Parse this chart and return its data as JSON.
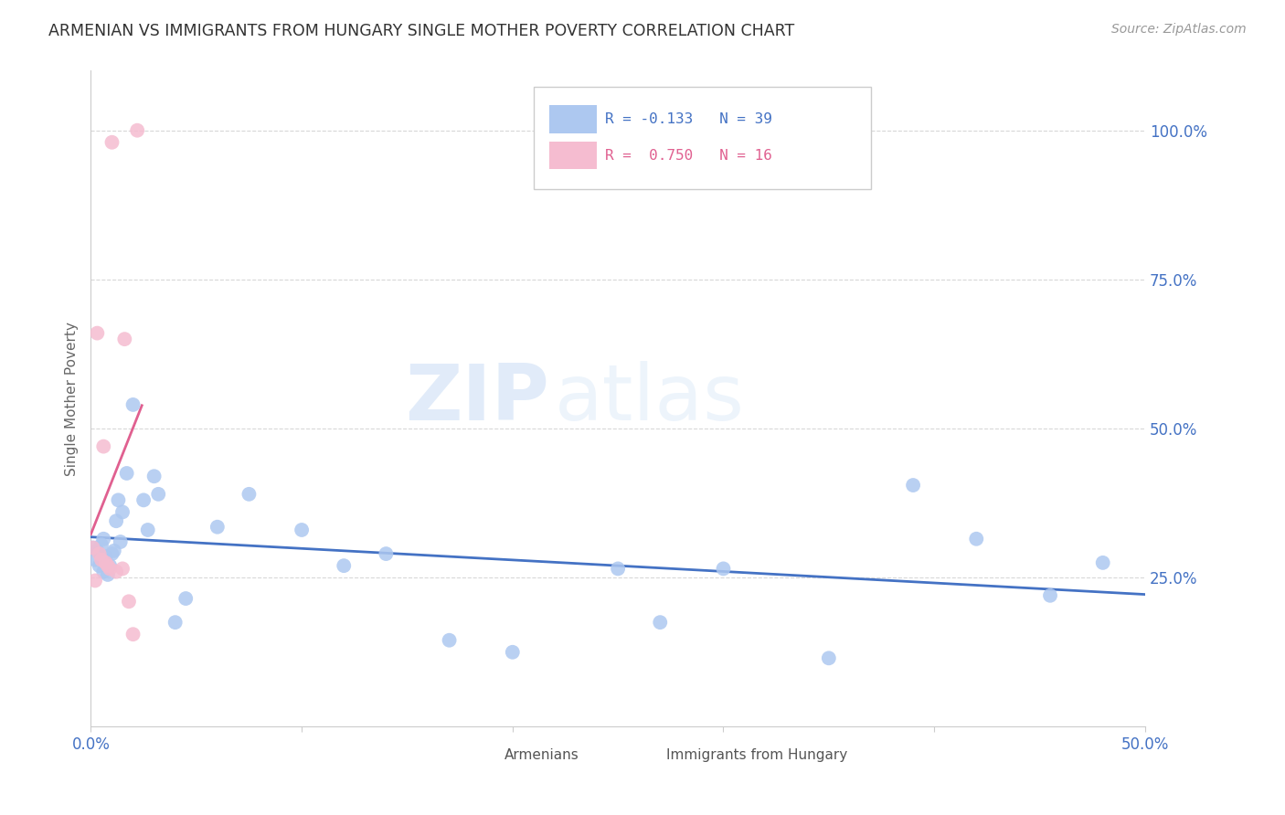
{
  "title": "ARMENIAN VS IMMIGRANTS FROM HUNGARY SINGLE MOTHER POVERTY CORRELATION CHART",
  "source": "Source: ZipAtlas.com",
  "ylabel": "Single Mother Poverty",
  "legend_label1": "Armenians",
  "legend_label2": "Immigrants from Hungary",
  "armenian_color": "#adc8f0",
  "hungary_color": "#f5bcd0",
  "armenian_line_color": "#4472c4",
  "hungary_line_color": "#e06090",
  "watermark_zip": "ZIP",
  "watermark_atlas": "atlas",
  "xlim": [
    0.0,
    0.5
  ],
  "ylim": [
    0.0,
    1.1
  ],
  "yticks": [
    0.0,
    0.25,
    0.5,
    0.75,
    1.0
  ],
  "yticklabels_right": [
    "25.0%",
    "50.0%",
    "75.0%",
    "100.0%"
  ],
  "xtick_positions": [
    0.0,
    0.1,
    0.2,
    0.3,
    0.4,
    0.5
  ],
  "xtick_labels": [
    "0.0%",
    "",
    "",
    "",
    "",
    "50.0%"
  ],
  "armenians_x": [
    0.001,
    0.002,
    0.003,
    0.004,
    0.005,
    0.006,
    0.006,
    0.007,
    0.008,
    0.009,
    0.01,
    0.011,
    0.012,
    0.013,
    0.014,
    0.015,
    0.017,
    0.02,
    0.025,
    0.027,
    0.03,
    0.032,
    0.04,
    0.045,
    0.06,
    0.075,
    0.1,
    0.12,
    0.14,
    0.17,
    0.2,
    0.25,
    0.27,
    0.3,
    0.35,
    0.39,
    0.42,
    0.455,
    0.48
  ],
  "armenians_y": [
    0.3,
    0.28,
    0.295,
    0.27,
    0.305,
    0.26,
    0.315,
    0.285,
    0.255,
    0.27,
    0.29,
    0.295,
    0.345,
    0.38,
    0.31,
    0.36,
    0.425,
    0.54,
    0.38,
    0.33,
    0.42,
    0.39,
    0.175,
    0.215,
    0.335,
    0.39,
    0.33,
    0.27,
    0.29,
    0.145,
    0.125,
    0.265,
    0.175,
    0.265,
    0.115,
    0.405,
    0.315,
    0.22,
    0.275
  ],
  "hungary_x": [
    0.001,
    0.002,
    0.003,
    0.004,
    0.005,
    0.006,
    0.007,
    0.008,
    0.009,
    0.01,
    0.012,
    0.015,
    0.016,
    0.018,
    0.02,
    0.022
  ],
  "hungary_y": [
    0.3,
    0.245,
    0.66,
    0.29,
    0.28,
    0.47,
    0.275,
    0.27,
    0.265,
    0.98,
    0.26,
    0.265,
    0.65,
    0.21,
    0.155,
    1.0
  ],
  "grid_color": "#d8d8d8",
  "tick_color": "#4472c4",
  "title_color": "#333333",
  "source_color": "#999999"
}
